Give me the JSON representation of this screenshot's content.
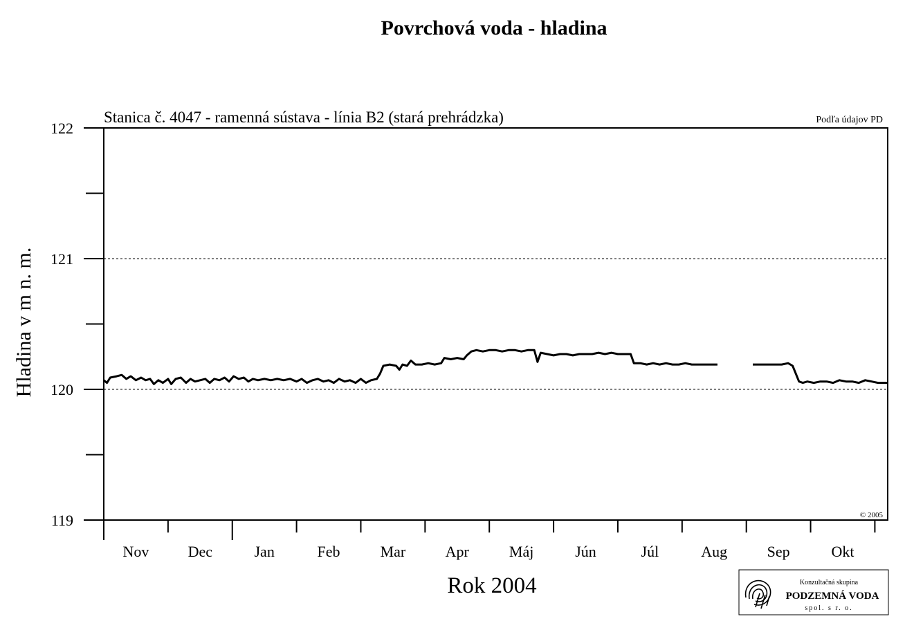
{
  "chart_data": {
    "type": "line",
    "title": "Povrchová voda - hladina",
    "subtitle": "Stanica č. 4047 - ramenná sústava - línia B2 (stará prehrádzka)",
    "source_note": "Podľa údajov PD",
    "copyright": "© 2005",
    "xlabel": "Rok 2004",
    "ylabel": "Hladina v m n. m.",
    "ylim": [
      119,
      122
    ],
    "yticks": [
      "119",
      "120",
      "121",
      "122"
    ],
    "grid_y": [
      120,
      121
    ],
    "months": [
      "Nov",
      "Dec",
      "Jan",
      "Feb",
      "Mar",
      "Apr",
      "Máj",
      "Jún",
      "Júl",
      "Aug",
      "Sep",
      "Okt"
    ],
    "xlim_months": [
      0,
      12.2
    ],
    "series": [
      {
        "segments": [
          [
            [
              0.0,
              120.07
            ],
            [
              0.05,
              120.05
            ],
            [
              0.1,
              120.09
            ],
            [
              0.2,
              120.1
            ],
            [
              0.28,
              120.11
            ],
            [
              0.35,
              120.08
            ],
            [
              0.42,
              120.1
            ],
            [
              0.5,
              120.07
            ],
            [
              0.58,
              120.09
            ],
            [
              0.65,
              120.07
            ],
            [
              0.72,
              120.08
            ],
            [
              0.78,
              120.04
            ],
            [
              0.85,
              120.07
            ],
            [
              0.92,
              120.05
            ],
            [
              1.0,
              120.08
            ],
            [
              1.05,
              120.04
            ],
            [
              1.12,
              120.08
            ],
            [
              1.2,
              120.09
            ],
            [
              1.28,
              120.05
            ],
            [
              1.35,
              120.08
            ],
            [
              1.42,
              120.06
            ],
            [
              1.5,
              120.07
            ],
            [
              1.58,
              120.08
            ],
            [
              1.65,
              120.05
            ],
            [
              1.72,
              120.08
            ],
            [
              1.8,
              120.07
            ],
            [
              1.88,
              120.09
            ],
            [
              1.95,
              120.06
            ],
            [
              2.02,
              120.1
            ],
            [
              2.1,
              120.08
            ],
            [
              2.18,
              120.09
            ],
            [
              2.25,
              120.06
            ],
            [
              2.32,
              120.08
            ],
            [
              2.4,
              120.07
            ],
            [
              2.5,
              120.08
            ],
            [
              2.6,
              120.07
            ],
            [
              2.7,
              120.08
            ],
            [
              2.8,
              120.07
            ],
            [
              2.9,
              120.08
            ],
            [
              3.0,
              120.06
            ],
            [
              3.08,
              120.08
            ],
            [
              3.16,
              120.05
            ],
            [
              3.25,
              120.07
            ],
            [
              3.33,
              120.08
            ],
            [
              3.42,
              120.06
            ],
            [
              3.5,
              120.07
            ],
            [
              3.58,
              120.05
            ],
            [
              3.66,
              120.08
            ],
            [
              3.75,
              120.06
            ],
            [
              3.83,
              120.07
            ],
            [
              3.92,
              120.05
            ],
            [
              4.0,
              120.08
            ],
            [
              4.08,
              120.05
            ],
            [
              4.16,
              120.07
            ],
            [
              4.25,
              120.08
            ],
            [
              4.3,
              120.12
            ],
            [
              4.35,
              120.18
            ],
            [
              4.45,
              120.19
            ],
            [
              4.55,
              120.18
            ],
            [
              4.6,
              120.15
            ],
            [
              4.65,
              120.19
            ],
            [
              4.72,
              120.18
            ],
            [
              4.78,
              120.22
            ],
            [
              4.85,
              120.19
            ],
            [
              4.95,
              120.19
            ],
            [
              5.05,
              120.2
            ],
            [
              5.15,
              120.19
            ],
            [
              5.25,
              120.2
            ],
            [
              5.3,
              120.24
            ],
            [
              5.4,
              120.23
            ],
            [
              5.5,
              120.24
            ],
            [
              5.6,
              120.23
            ],
            [
              5.65,
              120.26
            ],
            [
              5.72,
              120.29
            ],
            [
              5.8,
              120.3
            ],
            [
              5.9,
              120.29
            ],
            [
              6.0,
              120.3
            ],
            [
              6.1,
              120.3
            ],
            [
              6.2,
              120.29
            ],
            [
              6.3,
              120.3
            ],
            [
              6.4,
              120.3
            ],
            [
              6.5,
              120.29
            ],
            [
              6.6,
              120.3
            ],
            [
              6.7,
              120.3
            ],
            [
              6.75,
              120.21
            ],
            [
              6.8,
              120.28
            ],
            [
              6.9,
              120.27
            ],
            [
              7.0,
              120.26
            ],
            [
              7.1,
              120.27
            ],
            [
              7.2,
              120.27
            ],
            [
              7.3,
              120.26
            ],
            [
              7.4,
              120.27
            ],
            [
              7.5,
              120.27
            ],
            [
              7.6,
              120.27
            ],
            [
              7.7,
              120.28
            ],
            [
              7.8,
              120.27
            ],
            [
              7.9,
              120.28
            ],
            [
              8.0,
              120.27
            ],
            [
              8.1,
              120.27
            ],
            [
              8.2,
              120.27
            ],
            [
              8.25,
              120.2
            ],
            [
              8.35,
              120.2
            ],
            [
              8.45,
              120.19
            ],
            [
              8.55,
              120.2
            ],
            [
              8.65,
              120.19
            ],
            [
              8.75,
              120.2
            ],
            [
              8.85,
              120.19
            ],
            [
              8.95,
              120.19
            ],
            [
              9.05,
              120.2
            ],
            [
              9.15,
              120.19
            ],
            [
              9.25,
              120.19
            ],
            [
              9.35,
              120.19
            ],
            [
              9.45,
              120.19
            ],
            [
              9.55,
              120.19
            ]
          ],
          [
            [
              10.1,
              120.19
            ],
            [
              10.25,
              120.19
            ],
            [
              10.4,
              120.19
            ],
            [
              10.55,
              120.19
            ],
            [
              10.65,
              120.2
            ],
            [
              10.72,
              120.18
            ],
            [
              10.77,
              120.12
            ],
            [
              10.82,
              120.06
            ],
            [
              10.88,
              120.05
            ],
            [
              10.95,
              120.06
            ],
            [
              11.05,
              120.05
            ],
            [
              11.15,
              120.06
            ],
            [
              11.25,
              120.06
            ],
            [
              11.35,
              120.05
            ],
            [
              11.45,
              120.07
            ],
            [
              11.55,
              120.06
            ],
            [
              11.65,
              120.06
            ],
            [
              11.75,
              120.05
            ],
            [
              11.85,
              120.07
            ],
            [
              11.95,
              120.06
            ],
            [
              12.05,
              120.05
            ],
            [
              12.2,
              120.05
            ]
          ]
        ]
      }
    ]
  },
  "logo": {
    "line1": "Konzultačná skupina",
    "line2": "PODZEMNÁ VODA",
    "line3": "spol. s r. o."
  }
}
